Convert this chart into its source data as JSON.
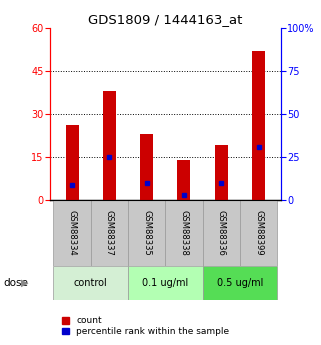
{
  "title": "GDS1809 / 1444163_at",
  "samples": [
    "GSM88334",
    "GSM88337",
    "GSM88335",
    "GSM88338",
    "GSM88336",
    "GSM88399"
  ],
  "red_values": [
    26,
    38,
    23,
    14,
    19,
    52
  ],
  "blue_values": [
    9,
    25,
    10,
    3,
    10,
    31
  ],
  "left_ylim": [
    0,
    60
  ],
  "right_ylim": [
    0,
    100
  ],
  "left_yticks": [
    0,
    15,
    30,
    45,
    60
  ],
  "right_yticks": [
    0,
    25,
    50,
    75,
    100
  ],
  "right_yticklabels": [
    "0",
    "25",
    "50",
    "75",
    "100%"
  ],
  "groups": [
    {
      "label": "control",
      "indices": [
        0,
        1
      ]
    },
    {
      "label": "0.1 ug/ml",
      "indices": [
        2,
        3
      ]
    },
    {
      "label": "0.5 ug/ml",
      "indices": [
        4,
        5
      ]
    }
  ],
  "dose_label": "dose",
  "legend_red": "count",
  "legend_blue": "percentile rank within the sample",
  "bar_color": "#cc0000",
  "blue_color": "#0000cc",
  "bar_width": 0.35,
  "xlabel_bg": "#c8c8c8",
  "group_bg_colors": [
    "#d4efd4",
    "#b3ffb3",
    "#55dd55"
  ],
  "control_bg": "#e0e0e0",
  "dose_bg_light": "#ccffcc",
  "dose_bg_medium": "#66dd66"
}
